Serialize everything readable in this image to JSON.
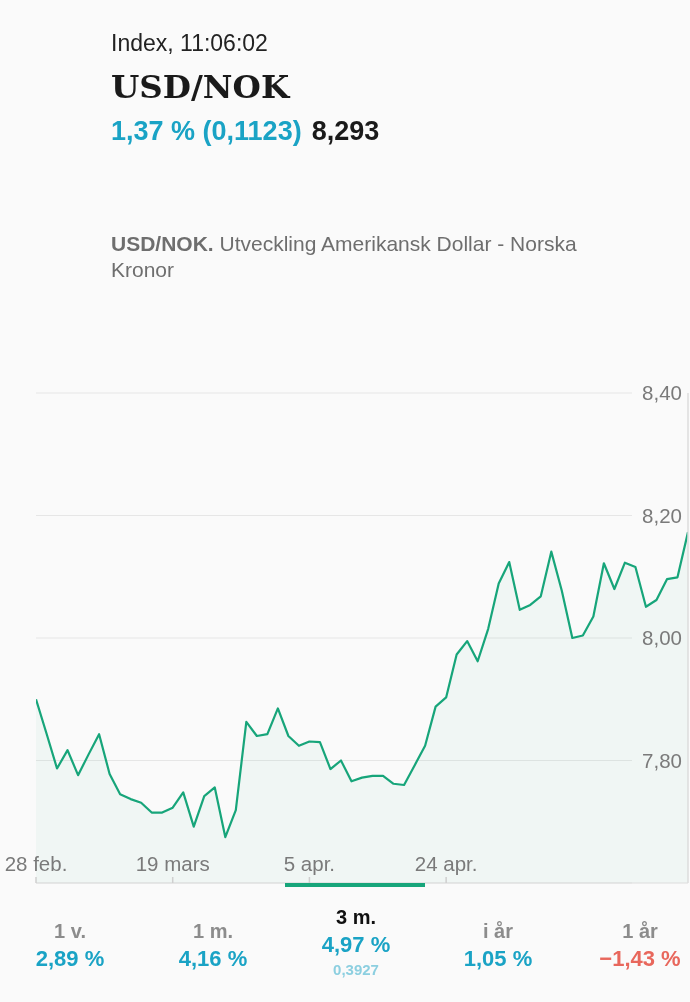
{
  "chart_data": {
    "type": "area",
    "title": "USD/NOK",
    "subtitle": "USD/NOK. Utveckling Amerikansk Dollar - Norska Kronor",
    "annotations": [
      "Index, 11:06:02",
      "1,37 % (0,1123)",
      "8,293",
      "1 v.",
      "2,89 %",
      "1 m.",
      "4,16 %",
      "3 m.",
      "4,97 %",
      "0,3927",
      "i år",
      "1,05 %",
      "1 år",
      "−1,43 %"
    ],
    "categories": [
      "28 feb.",
      null,
      null,
      null,
      null,
      null,
      null,
      null,
      null,
      null,
      null,
      null,
      null,
      "19 mars",
      null,
      null,
      null,
      null,
      null,
      null,
      null,
      null,
      null,
      null,
      null,
      null,
      "5 apr.",
      null,
      null,
      null,
      null,
      null,
      null,
      null,
      null,
      null,
      null,
      null,
      null,
      "24 apr.",
      null,
      null,
      null,
      null,
      null,
      null,
      null,
      null,
      null,
      null,
      null,
      null,
      null,
      null,
      null,
      null,
      null,
      null,
      null,
      null,
      null,
      null,
      null
    ],
    "series": [
      {
        "color": "#17a57a",
        "values": [
          7.9,
          7.844,
          7.787,
          7.817,
          7.776,
          7.81,
          7.843,
          7.778,
          7.745,
          7.737,
          7.731,
          7.715,
          7.715,
          7.723,
          7.748,
          7.692,
          7.742,
          7.756,
          7.675,
          7.719,
          7.863,
          7.84,
          7.843,
          7.885,
          7.84,
          7.824,
          7.831,
          7.83,
          7.786,
          7.8,
          7.766,
          7.772,
          7.775,
          7.775,
          7.762,
          7.76,
          7.792,
          7.824,
          7.888,
          7.903,
          7.973,
          7.995,
          7.962,
          8.015,
          8.089,
          8.124,
          8.046,
          8.054,
          8.068,
          8.141,
          8.077,
          8.0,
          8.004,
          8.035,
          8.122,
          8.08,
          8.123,
          8.116,
          8.051,
          8.062,
          8.096,
          8.099,
          8.173
        ]
      }
    ],
    "ylim": [
      7.6,
      8.4
    ],
    "yticks": [
      {
        "value": 7.8,
        "label": "7,80"
      },
      {
        "value": 8.0,
        "label": "8,00"
      },
      {
        "value": 8.2,
        "label": "8,20"
      },
      {
        "value": 8.4,
        "label": "8,40"
      }
    ],
    "grid": "y"
  }
}
